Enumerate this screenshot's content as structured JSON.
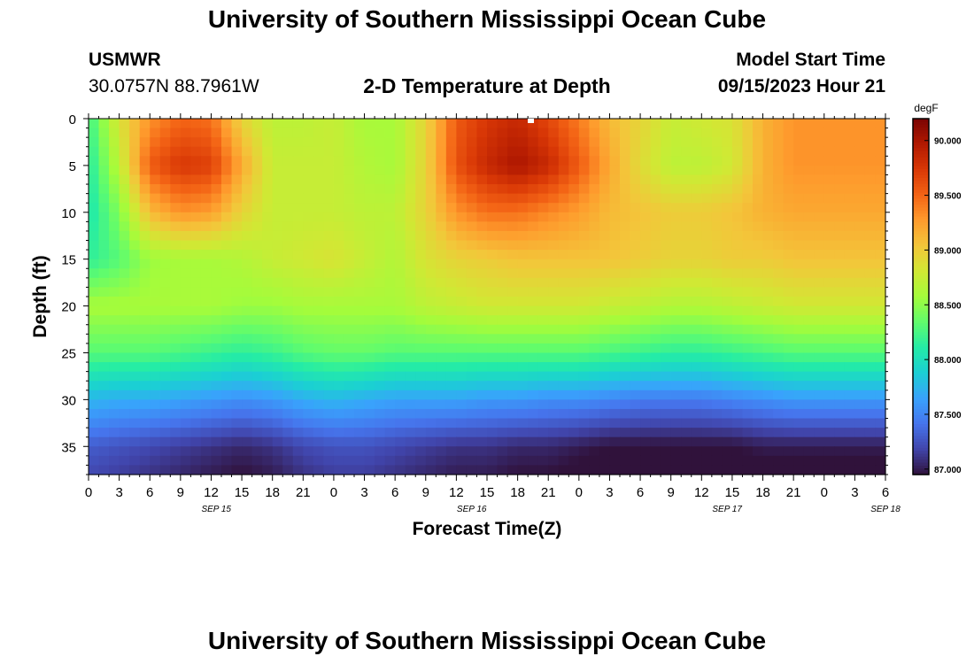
{
  "header": {
    "main_title": "University of Southern Mississippi Ocean Cube",
    "station_name": "USMWR",
    "station_coords": "30.0757N  88.7961W",
    "plot_title": "2-D Temperature at Depth",
    "start_label": "Model Start Time",
    "start_value": "09/15/2023 Hour 21"
  },
  "footer": {
    "second_title": "University of Southern Mississippi Ocean Cube"
  },
  "colors": {
    "scale": [
      "#30123b",
      "#4145ab",
      "#4675ed",
      "#39a2fc",
      "#1bcfd4",
      "#24eca6",
      "#61fc6c",
      "#a4fc3b",
      "#d1e834",
      "#f3c63a",
      "#fe9b2d",
      "#f36315",
      "#d93806",
      "#b11901",
      "#7a0403"
    ]
  },
  "chart_data": {
    "type": "heatmap",
    "title": "2-D Temperature at Depth",
    "xlabel": "Forecast Time(Z)",
    "ylabel": "Depth (ft)",
    "x_hours": [
      0,
      3,
      6,
      9,
      12,
      15,
      18,
      21,
      24,
      27,
      30,
      33,
      36,
      39,
      42,
      45,
      48,
      51,
      54,
      57,
      60,
      63,
      66,
      69,
      72,
      75,
      78,
      81
    ],
    "x_tick_labels": [
      "0",
      "3",
      "6",
      "9",
      "12",
      "15",
      "18",
      "21",
      "0",
      "3",
      "6",
      "9",
      "12",
      "15",
      "18",
      "21",
      "0",
      "3",
      "6",
      "9",
      "12",
      "15",
      "18",
      "21",
      "0",
      "3",
      "6"
    ],
    "date_labels": [
      {
        "text": "SEP 15",
        "hour": 12.5
      },
      {
        "text": "SEP 16",
        "hour": 37.5
      },
      {
        "text": "SEP 17",
        "hour": 62.5
      },
      {
        "text": "SEP 18",
        "hour": 78
      }
    ],
    "xlim": [
      0,
      78
    ],
    "depths_ft": [
      0,
      5,
      10,
      15,
      20,
      25,
      30,
      35,
      38
    ],
    "y_tick_labels": [
      "0",
      "5",
      "10",
      "15",
      "20",
      "25",
      "30",
      "35"
    ],
    "y_tick_values": [
      0,
      5,
      10,
      15,
      20,
      25,
      30,
      35
    ],
    "ylim": [
      0,
      38
    ],
    "values_degF": [
      [
        88.2,
        88.85,
        89.3,
        89.5,
        89.45,
        88.95,
        88.7,
        88.7,
        88.75,
        88.6,
        88.6,
        88.95,
        89.55,
        89.75,
        89.85,
        89.65,
        89.4,
        89.1,
        88.95,
        88.75,
        88.8,
        88.85,
        89.15,
        89.3,
        89.3,
        89.3,
        89.3,
        89.3
      ],
      [
        88.1,
        88.7,
        89.55,
        89.75,
        89.7,
        89.2,
        88.75,
        88.75,
        88.75,
        88.65,
        88.6,
        88.95,
        89.6,
        89.85,
        90.0,
        89.85,
        89.55,
        89.2,
        88.9,
        88.7,
        88.7,
        88.8,
        89.15,
        89.3,
        89.3,
        89.3,
        89.3,
        89.3
      ],
      [
        88.05,
        88.45,
        89.1,
        89.3,
        89.25,
        88.95,
        88.75,
        88.75,
        88.75,
        88.7,
        88.7,
        88.95,
        89.3,
        89.45,
        89.45,
        89.35,
        89.25,
        89.1,
        89.05,
        89.0,
        89.0,
        89.05,
        89.15,
        89.2,
        89.2,
        89.2,
        89.2,
        89.2
      ],
      [
        88.15,
        88.3,
        88.55,
        88.6,
        88.6,
        88.65,
        88.75,
        88.8,
        88.85,
        88.75,
        88.65,
        88.85,
        88.95,
        89.0,
        89.05,
        89.05,
        89.05,
        89.05,
        89.0,
        88.95,
        88.95,
        89.0,
        89.0,
        89.05,
        89.05,
        89.05,
        89.05,
        89.05
      ],
      [
        88.6,
        88.6,
        88.6,
        88.6,
        88.6,
        88.55,
        88.55,
        88.6,
        88.6,
        88.6,
        88.6,
        88.7,
        88.75,
        88.8,
        88.8,
        88.8,
        88.8,
        88.75,
        88.7,
        88.65,
        88.65,
        88.7,
        88.75,
        88.8,
        88.8,
        88.8,
        88.8,
        88.8
      ],
      [
        88.3,
        88.3,
        88.3,
        88.25,
        88.2,
        88.15,
        88.2,
        88.3,
        88.35,
        88.35,
        88.3,
        88.3,
        88.3,
        88.3,
        88.3,
        88.3,
        88.3,
        88.25,
        88.2,
        88.15,
        88.15,
        88.2,
        88.25,
        88.3,
        88.3,
        88.3,
        88.3,
        88.3
      ],
      [
        87.75,
        87.7,
        87.7,
        87.65,
        87.6,
        87.55,
        87.6,
        87.7,
        87.75,
        87.7,
        87.65,
        87.65,
        87.65,
        87.6,
        87.6,
        87.55,
        87.55,
        87.5,
        87.45,
        87.45,
        87.45,
        87.5,
        87.55,
        87.6,
        87.6,
        87.6,
        87.6,
        87.6
      ],
      [
        87.3,
        87.25,
        87.2,
        87.15,
        87.1,
        87.05,
        87.1,
        87.2,
        87.25,
        87.25,
        87.2,
        87.15,
        87.1,
        87.1,
        87.05,
        87.05,
        87.0,
        86.95,
        86.95,
        86.95,
        86.95,
        86.95,
        87.0,
        87.0,
        87.0,
        87.0,
        87.0,
        87.0
      ],
      [
        87.2,
        87.15,
        87.1,
        87.05,
        87.0,
        86.95,
        87.0,
        87.1,
        87.15,
        87.15,
        87.1,
        87.05,
        87.0,
        87.0,
        86.95,
        86.95,
        86.9,
        86.85,
        86.85,
        86.85,
        86.85,
        86.85,
        86.9,
        86.9,
        86.9,
        86.9,
        86.9,
        86.9
      ]
    ],
    "colorbar": {
      "unit": "degF",
      "range": [
        86.95,
        90.2
      ],
      "tick_values": [
        87.0,
        87.5,
        88.0,
        88.5,
        89.0,
        89.5,
        90.0
      ],
      "tick_labels": [
        "87.000",
        "87.500",
        "88.000",
        "88.500",
        "89.000",
        "89.500",
        "90.000"
      ]
    }
  }
}
